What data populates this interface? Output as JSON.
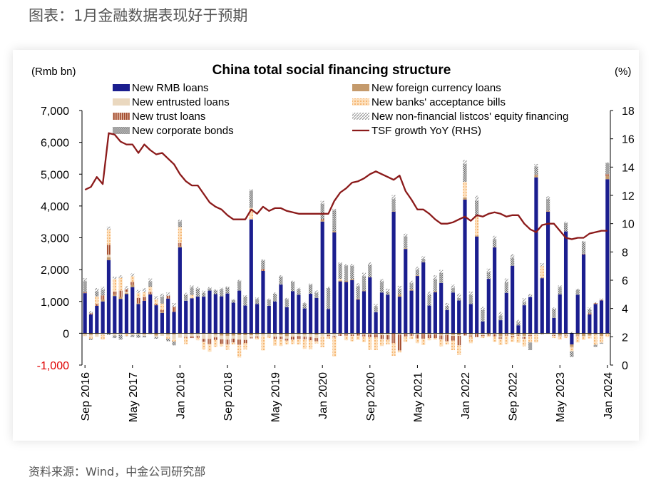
{
  "header": {
    "title": "图表：1月金融数据表现好于预期"
  },
  "source": {
    "text": "资料来源：Wind，中金公司研究部"
  },
  "chart_data": {
    "type": "bar",
    "title": "China total social financing structure",
    "ylabel_left": "(Rmb bn)",
    "ylabel_right": "(%)",
    "ylim_left": [
      -1000,
      7000
    ],
    "ylim_right": [
      0,
      18
    ],
    "yticks_left": [
      "-1,000",
      "0",
      "1,000",
      "2,000",
      "3,000",
      "4,000",
      "5,000",
      "6,000",
      "7,000"
    ],
    "yticks_right": [
      "0",
      "2",
      "4",
      "6",
      "8",
      "10",
      "12",
      "14",
      "16",
      "18"
    ],
    "x_tick_labels": [
      "Sep 2016",
      "May 2017",
      "Jan 2018",
      "Sep 2018",
      "May 2019",
      "Jan 2020",
      "Sep 2020",
      "May 2021",
      "Jan 2022",
      "Sep 2022",
      "May 2023",
      "Jan 2024"
    ],
    "legend": [
      {
        "name": "New RMB loans",
        "swatch": "solid-navy"
      },
      {
        "name": "New foreign currency loans",
        "swatch": "solid-tan"
      },
      {
        "name": "New entrusted loans",
        "swatch": "solid-beige"
      },
      {
        "name": "New banks' acceptance bills",
        "swatch": "dots-orange"
      },
      {
        "name": "New trust loans",
        "swatch": "vstripe-brown"
      },
      {
        "name": "New non-financial listcos' equity financing",
        "swatch": "diag-grey"
      },
      {
        "name": "New corporate bonds",
        "swatch": "check-grey"
      },
      {
        "name": "TSF growth YoY (RHS)",
        "swatch": "line-darkred"
      }
    ],
    "colors": {
      "rmb_loans": "#1b1e8f",
      "foreign_loans": "#c49a6c",
      "entrusted_loans": "#ead8bf",
      "acceptance_bills": "#f3a95b",
      "trust_loans": "#a0482a",
      "equity_financing": "#9a9a9a",
      "corporate_bonds": "#7c7c7c",
      "tsf_growth": "#8b1a1a",
      "negative_tick": "#e00000"
    },
    "categories": [
      "2016-09",
      "2016-10",
      "2016-11",
      "2016-12",
      "2017-01",
      "2017-02",
      "2017-03",
      "2017-04",
      "2017-05",
      "2017-06",
      "2017-07",
      "2017-08",
      "2017-09",
      "2017-10",
      "2017-11",
      "2017-12",
      "2018-01",
      "2018-02",
      "2018-03",
      "2018-04",
      "2018-05",
      "2018-06",
      "2018-07",
      "2018-08",
      "2018-09",
      "2018-10",
      "2018-11",
      "2018-12",
      "2019-01",
      "2019-02",
      "2019-03",
      "2019-04",
      "2019-05",
      "2019-06",
      "2019-07",
      "2019-08",
      "2019-09",
      "2019-10",
      "2019-11",
      "2019-12",
      "2020-01",
      "2020-02",
      "2020-03",
      "2020-04",
      "2020-05",
      "2020-06",
      "2020-07",
      "2020-08",
      "2020-09",
      "2020-10",
      "2020-11",
      "2020-12",
      "2021-01",
      "2021-02",
      "2021-03",
      "2021-04",
      "2021-05",
      "2021-06",
      "2021-07",
      "2021-08",
      "2021-09",
      "2021-10",
      "2021-11",
      "2021-12",
      "2022-01",
      "2022-02",
      "2022-03",
      "2022-04",
      "2022-05",
      "2022-06",
      "2022-07",
      "2022-08",
      "2022-09",
      "2022-10",
      "2022-11",
      "2022-12",
      "2023-01",
      "2023-02",
      "2023-03",
      "2023-04",
      "2023-05",
      "2023-06",
      "2023-07",
      "2023-08",
      "2023-09",
      "2023-10",
      "2023-11",
      "2023-12",
      "2024-01"
    ],
    "series": [
      {
        "name": "New RMB loans",
        "key": "rmb_loans",
        "values": [
          1260,
          590,
          860,
          1000,
          2300,
          1170,
          1080,
          1230,
          1450,
          920,
          1020,
          1220,
          880,
          640,
          1090,
          670,
          2700,
          1020,
          1100,
          1150,
          1150,
          1340,
          1230,
          1160,
          1250,
          960,
          1340,
          870,
          3580,
          920,
          1960,
          860,
          1000,
          1530,
          820,
          1320,
          1210,
          780,
          1240,
          1110,
          3510,
          760,
          3170,
          1630,
          1610,
          1670,
          1060,
          1320,
          1760,
          660,
          1280,
          1210,
          3820,
          1150,
          2650,
          1340,
          1800,
          2230,
          870,
          1290,
          1580,
          730,
          1280,
          1030,
          4200,
          920,
          3040,
          370,
          1710,
          2700,
          410,
          1270,
          2120,
          250,
          880,
          1140,
          4900,
          1730,
          3820,
          480,
          1220,
          3200,
          -350,
          1210,
          2480,
          590,
          920,
          1030,
          4840
        ]
      },
      {
        "name": "New foreign currency loans",
        "key": "foreign_loans",
        "values": [
          -30,
          -50,
          -30,
          60,
          90,
          40,
          60,
          30,
          70,
          20,
          -30,
          20,
          -70,
          30,
          -40,
          -40,
          30,
          -20,
          -30,
          -10,
          -10,
          -10,
          -40,
          -70,
          -80,
          -70,
          -60,
          -60,
          -60,
          -40,
          -30,
          -20,
          -30,
          -50,
          -90,
          -20,
          -30,
          -40,
          -30,
          -50,
          50,
          -10,
          40,
          30,
          40,
          30,
          30,
          20,
          10,
          -10,
          -30,
          -20,
          10,
          70,
          20,
          40,
          20,
          10,
          -20,
          30,
          -40,
          -30,
          -50,
          -60,
          70,
          -40,
          30,
          -20,
          -20,
          10,
          -100,
          -20,
          -60,
          -40,
          -80,
          -40,
          60,
          -20,
          20,
          -30,
          -70,
          -40,
          -80,
          -50,
          -90,
          -70,
          -40,
          -90,
          100
        ]
      },
      {
        "name": "New entrusted loans",
        "key": "entrusted_loans",
        "values": [
          -40,
          -60,
          -80,
          -60,
          80,
          -70,
          -50,
          40,
          -60,
          -50,
          -50,
          -40,
          -50,
          -80,
          -50,
          -140,
          -140,
          -100,
          -70,
          -80,
          -170,
          -170,
          -90,
          -120,
          -120,
          -100,
          -140,
          -150,
          -70,
          -60,
          -50,
          -60,
          -80,
          -60,
          -80,
          -90,
          -60,
          -70,
          -90,
          -100,
          -90,
          -40,
          -90,
          -30,
          -30,
          -40,
          -10,
          -40,
          -40,
          -20,
          -30,
          -40,
          -10,
          -40,
          -20,
          -20,
          -40,
          -20,
          -20,
          -30,
          -30,
          -20,
          -30,
          -20,
          -10,
          -30,
          -20,
          -40,
          -10,
          -30,
          -30,
          -20,
          -20,
          -10,
          -40,
          -20,
          -50,
          -10,
          -20,
          -30,
          -20,
          -30,
          -10,
          -20,
          -20,
          -10,
          -20,
          -10,
          -20
        ]
      },
      {
        "name": "New trust loans",
        "key": "trust_loans",
        "values": [
          30,
          40,
          60,
          130,
          310,
          100,
          200,
          80,
          90,
          170,
          120,
          60,
          40,
          60,
          90,
          160,
          110,
          -20,
          -50,
          -50,
          -90,
          -160,
          -80,
          -140,
          -150,
          -120,
          -160,
          -100,
          -30,
          -40,
          60,
          -10,
          -70,
          -70,
          -60,
          -90,
          -90,
          -80,
          -100,
          -100,
          30,
          -40,
          -40,
          -50,
          -40,
          -40,
          -60,
          -60,
          -80,
          -100,
          -120,
          -140,
          -300,
          -500,
          -80,
          -60,
          -120,
          -150,
          -110,
          -120,
          -120,
          -200,
          -150,
          -300,
          -60,
          -40,
          -100,
          -30,
          -40,
          -70,
          -40,
          -30,
          -40,
          -30,
          -50,
          -30,
          20,
          20,
          10,
          -20,
          -10,
          -20,
          -5,
          -20,
          20,
          40,
          30,
          20,
          60
        ]
      },
      {
        "name": "New banks' acceptance bills",
        "key": "acceptance_bills",
        "values": [
          -20,
          -60,
          240,
          -140,
          480,
          400,
          400,
          -80,
          180,
          160,
          150,
          160,
          150,
          200,
          -80,
          -80,
          500,
          -200,
          100,
          -80,
          -240,
          -240,
          -220,
          -80,
          -170,
          -60,
          -400,
          -200,
          360,
          -60,
          -460,
          -60,
          -210,
          -220,
          -120,
          -140,
          -170,
          -300,
          -280,
          -70,
          -350,
          -80,
          -600,
          50,
          -150,
          -170,
          -140,
          -180,
          -400,
          -400,
          -220,
          -150,
          -400,
          -60,
          -170,
          -100,
          -150,
          -200,
          -70,
          -50,
          -220,
          -100,
          -300,
          -300,
          490,
          -200,
          600,
          -60,
          -50,
          -170,
          -200,
          -270,
          -150,
          -220,
          -240,
          -200,
          -240,
          360,
          -10,
          -70,
          -100,
          -60,
          -120,
          -200,
          -100,
          -80,
          -300,
          -200,
          -100
        ]
      },
      {
        "name": "New corporate bonds",
        "key": "corporate_bonds",
        "values": [
          350,
          -40,
          160,
          170,
          -50,
          -80,
          -150,
          -10,
          -60,
          -90,
          -50,
          170,
          -50,
          220,
          -80,
          -120,
          170,
          180,
          240,
          250,
          120,
          70,
          120,
          230,
          180,
          80,
          300,
          280,
          540,
          160,
          270,
          190,
          240,
          250,
          250,
          290,
          180,
          160,
          280,
          160,
          480,
          660,
          650,
          480,
          480,
          420,
          390,
          450,
          370,
          190,
          340,
          100,
          390,
          170,
          380,
          190,
          180,
          100,
          340,
          380,
          310,
          130,
          140,
          80,
          560,
          290,
          500,
          360,
          210,
          250,
          150,
          330,
          260,
          90,
          100,
          -240,
          260,
          -10,
          370,
          280,
          230,
          260,
          -180,
          160,
          370,
          130,
          -70,
          -30,
          350
        ]
      },
      {
        "name": "New non-financial listcos' equity financing",
        "key": "equity_financing",
        "values": [
          90,
          70,
          100,
          100,
          90,
          70,
          80,
          100,
          90,
          90,
          130,
          90,
          100,
          100,
          100,
          120,
          60,
          70,
          60,
          60,
          70,
          40,
          30,
          40,
          40,
          40,
          40,
          40,
          40,
          40,
          40,
          40,
          40,
          40,
          40,
          40,
          40,
          40,
          40,
          80,
          90,
          40,
          50,
          40,
          40,
          60,
          90,
          110,
          90,
          70,
          90,
          90,
          120,
          100,
          80,
          80,
          90,
          80,
          100,
          120,
          100,
          90,
          110,
          140,
          120,
          100,
          150,
          100,
          110,
          100,
          110,
          120,
          110,
          80,
          120,
          100,
          80,
          90,
          90,
          50,
          50,
          50,
          40,
          30,
          30,
          50,
          30,
          40,
          30
        ]
      },
      {
        "name": "TSF growth YoY (RHS)",
        "key": "tsf_growth",
        "axis": "right",
        "values": [
          12.4,
          12.6,
          13.3,
          12.8,
          16.4,
          16.3,
          15.8,
          15.6,
          15.6,
          15.0,
          15.6,
          15.2,
          14.9,
          15.0,
          14.6,
          14.2,
          13.5,
          13.0,
          12.7,
          12.7,
          12.1,
          11.5,
          11.2,
          11.0,
          10.6,
          10.3,
          10.3,
          10.3,
          11.0,
          10.7,
          11.2,
          10.9,
          11.1,
          11.1,
          10.9,
          10.8,
          10.7,
          10.7,
          10.7,
          10.7,
          10.7,
          10.7,
          11.6,
          12.2,
          12.5,
          12.9,
          13.0,
          13.2,
          13.5,
          13.7,
          13.5,
          13.3,
          13.1,
          13.4,
          12.3,
          11.7,
          11.0,
          11.0,
          10.7,
          10.3,
          10.0,
          10.0,
          10.1,
          10.3,
          10.5,
          10.2,
          10.6,
          10.5,
          10.7,
          10.8,
          10.7,
          10.5,
          10.6,
          10.6,
          10.0,
          9.6,
          9.4,
          9.9,
          10.0,
          10.0,
          9.5,
          9.0,
          8.9,
          9.0,
          9.0,
          9.3,
          9.4,
          9.5,
          9.5
        ]
      }
    ]
  }
}
